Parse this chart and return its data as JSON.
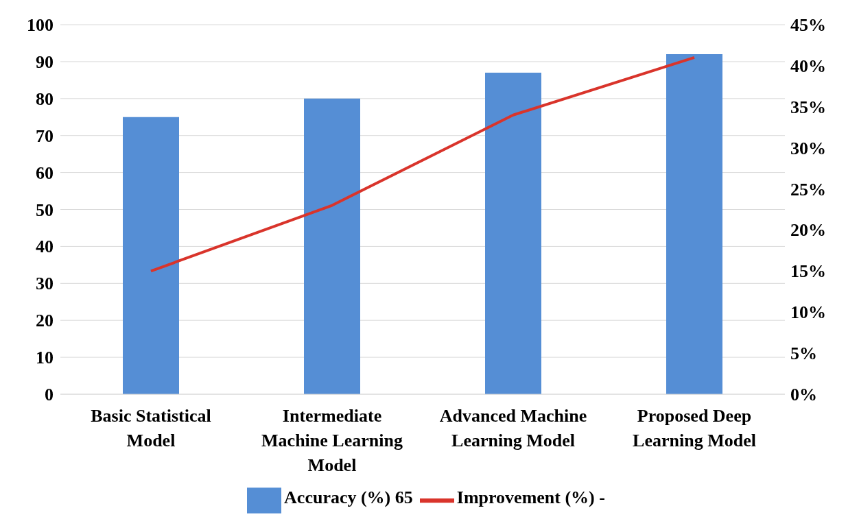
{
  "chart_data": {
    "type": "bar",
    "categories": [
      "Basic Statistical Model",
      "Intermediate Machine Learning Model",
      "Advanced Machine Learning Model",
      "Proposed Deep Learning Model"
    ],
    "series": [
      {
        "name": "Accuracy (%) 65",
        "color": "#558ed5",
        "values": [
          75,
          80,
          87,
          92
        ]
      },
      {
        "name": "Improvement (%) -",
        "type": "line",
        "axis": "y2",
        "color": "#d9342b",
        "values": [
          15,
          23,
          34,
          41
        ]
      }
    ],
    "ylim": [
      0,
      100
    ],
    "yticks": [
      0,
      10,
      20,
      30,
      40,
      50,
      60,
      70,
      80,
      90,
      100
    ],
    "y2lim": [
      0,
      45
    ],
    "y2ticks": [
      {
        "value": 0,
        "label": "0%"
      },
      {
        "value": 5,
        "label": "5%"
      },
      {
        "value": 10,
        "label": "10%"
      },
      {
        "value": 15,
        "label": "15%"
      },
      {
        "value": 20,
        "label": "20%"
      },
      {
        "value": 25,
        "label": "25%"
      },
      {
        "value": 30,
        "label": "30%"
      },
      {
        "value": 35,
        "label": "35%"
      },
      {
        "value": 40,
        "label": "40%"
      },
      {
        "value": 45,
        "label": "45%"
      }
    ],
    "grid": "y",
    "legend": "bottom",
    "marker": "none",
    "line_style": "solid"
  }
}
